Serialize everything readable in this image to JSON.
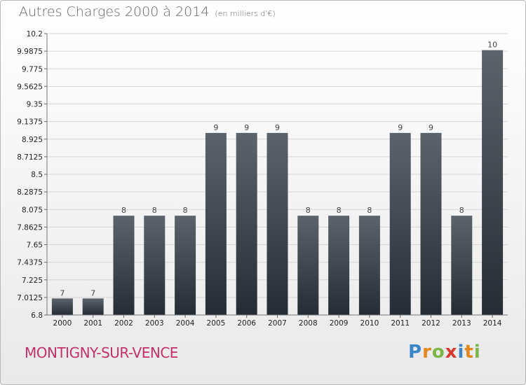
{
  "header": {
    "title": "Autres Charges 2000 à 2014",
    "unit": "(en milliers d'€)"
  },
  "footer": {
    "commune": "MONTIGNY-SUR-VENCE",
    "logo_text": "Proxiti"
  },
  "colors": {
    "bar_top": "#5c636b",
    "bar_bottom": "#262c33",
    "commune": "#c4306b"
  },
  "chart_data": {
    "type": "bar",
    "title": "Autres Charges 2000 à 2014",
    "categories": [
      "2000",
      "2001",
      "2002",
      "2003",
      "2004",
      "2005",
      "2006",
      "2007",
      "2008",
      "2009",
      "2010",
      "2011",
      "2012",
      "2013",
      "2014"
    ],
    "values": [
      7,
      7,
      8,
      8,
      8,
      9,
      9,
      9,
      8,
      8,
      8,
      9,
      9,
      8,
      10
    ],
    "value_labels": [
      "7",
      "7",
      "8",
      "8",
      "8",
      "9",
      "9",
      "9",
      "8",
      "8",
      "8",
      "9",
      "9",
      "8",
      "10"
    ],
    "ylim": [
      6.8,
      10.2
    ],
    "yticks": [
      6.8,
      7.0125,
      7.225,
      7.4375,
      7.65,
      7.8625,
      8.075,
      8.2875,
      8.5,
      8.7125,
      8.925,
      9.1375,
      9.35,
      9.5625,
      9.775,
      9.9875,
      10.2
    ],
    "ytick_labels": [
      "6.8",
      "7.0125",
      "7.225",
      "7.4375",
      "7.65",
      "7.8625",
      "8.075",
      "8.2875",
      "8.5",
      "8.7125",
      "8.925",
      "9.1375",
      "9.35",
      "9.5625",
      "9.775",
      "9.9875",
      "10.2"
    ],
    "grid": true
  }
}
